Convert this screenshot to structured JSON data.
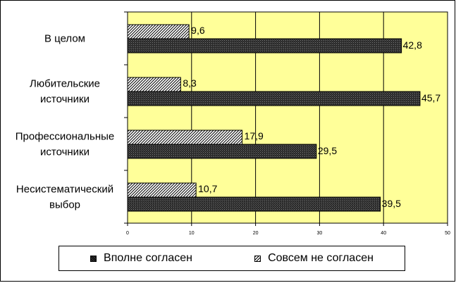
{
  "chart_data": {
    "type": "bar",
    "orientation": "horizontal",
    "categories": [
      "В целом",
      "Любительские источники",
      "Профессиональные источники",
      "Несистематический выбор"
    ],
    "category_lines": [
      [
        "В целом"
      ],
      [
        "Любительские",
        "источники"
      ],
      [
        "Профессиональные",
        "источники"
      ],
      [
        "Несистематический",
        "выбор"
      ]
    ],
    "series": [
      {
        "name": "Вполне согласен",
        "values": [
          42.8,
          45.7,
          29.5,
          39.5
        ],
        "labels": [
          "42,8",
          "45,7",
          "29,5",
          "39,5"
        ],
        "pattern": "dark"
      },
      {
        "name": "Совсем не согласен",
        "values": [
          9.6,
          8.3,
          17.9,
          10.7
        ],
        "labels": [
          "9,6",
          "8,3",
          "17,9",
          "10,7"
        ],
        "pattern": "hatch"
      }
    ],
    "xlim": [
      0,
      50
    ],
    "xticks": [
      0,
      10,
      20,
      30,
      40,
      50
    ],
    "grid": true,
    "plot_background": "#ffff99",
    "legend_position": "bottom"
  }
}
